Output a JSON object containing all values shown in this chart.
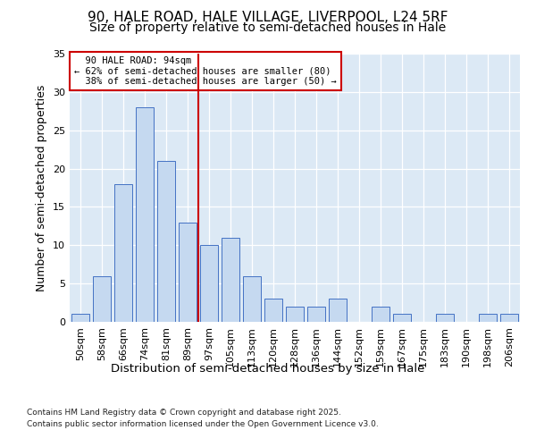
{
  "title1": "90, HALE ROAD, HALE VILLAGE, LIVERPOOL, L24 5RF",
  "title2": "Size of property relative to semi-detached houses in Hale",
  "xlabel": "Distribution of semi-detached houses by size in Hale",
  "ylabel": "Number of semi-detached properties",
  "categories": [
    "50sqm",
    "58sqm",
    "66sqm",
    "74sqm",
    "81sqm",
    "89sqm",
    "97sqm",
    "105sqm",
    "113sqm",
    "120sqm",
    "128sqm",
    "136sqm",
    "144sqm",
    "152sqm",
    "159sqm",
    "167sqm",
    "175sqm",
    "183sqm",
    "190sqm",
    "198sqm",
    "206sqm"
  ],
  "values": [
    1,
    6,
    18,
    28,
    21,
    13,
    10,
    11,
    6,
    3,
    2,
    2,
    3,
    0,
    2,
    1,
    0,
    1,
    0,
    1,
    1
  ],
  "bar_color": "#c5d9f0",
  "bar_edge_color": "#4472c4",
  "ref_line_x": 5.5,
  "ref_line_label": "90 HALE ROAD: 94sqm",
  "pct_smaller": "62% of semi-detached houses are smaller (80)",
  "pct_larger": "38% of semi-detached houses are larger (50)",
  "annotation_box_color": "#cc0000",
  "ref_line_color": "#cc0000",
  "ylim": [
    0,
    35
  ],
  "yticks": [
    0,
    5,
    10,
    15,
    20,
    25,
    30,
    35
  ],
  "background_color": "#dce9f5",
  "footer_line1": "Contains HM Land Registry data © Crown copyright and database right 2025.",
  "footer_line2": "Contains public sector information licensed under the Open Government Licence v3.0.",
  "title_fontsize": 11,
  "subtitle_fontsize": 10,
  "axis_fontsize": 9,
  "tick_fontsize": 8
}
